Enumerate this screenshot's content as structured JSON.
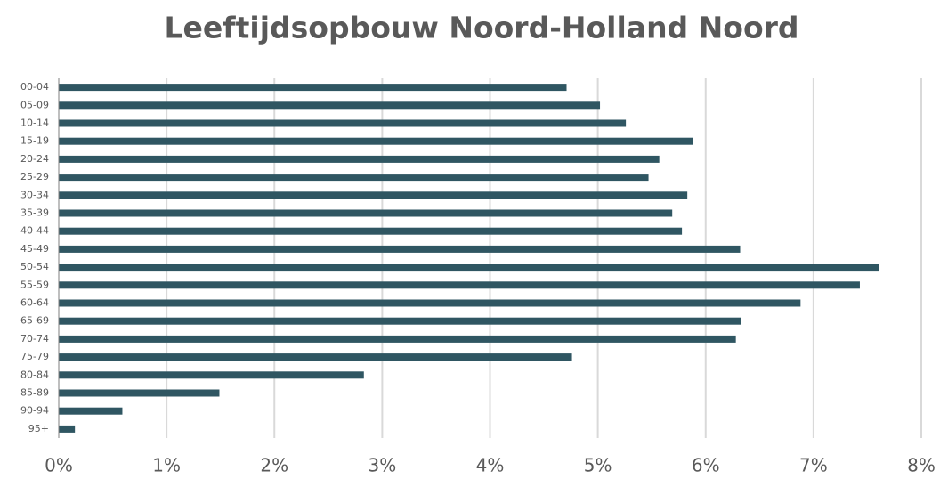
{
  "chart_data": {
    "type": "bar",
    "orientation": "horizontal",
    "title": "Leeftijdsopbouw Noord-Holland Noord",
    "categories": [
      "00-04",
      "05-09",
      "10-14",
      "15-19",
      "20-24",
      "25-29",
      "30-34",
      "35-39",
      "40-44",
      "45-49",
      "50-54",
      "55-59",
      "60-64",
      "65-69",
      "70-74",
      "75-79",
      "80-84",
      "85-89",
      "90-94",
      "95+"
    ],
    "values": [
      4.71,
      5.02,
      5.26,
      5.88,
      5.57,
      5.47,
      5.83,
      5.69,
      5.78,
      6.32,
      7.61,
      7.43,
      6.88,
      6.33,
      6.28,
      4.76,
      2.83,
      1.49,
      0.59,
      0.15
    ],
    "color": "#2f5662",
    "xlim": [
      0,
      8
    ],
    "xticks": [
      {
        "value": 0,
        "label": "0%"
      },
      {
        "value": 1,
        "label": "1%"
      },
      {
        "value": 2,
        "label": "2%"
      },
      {
        "value": 3,
        "label": "3%"
      },
      {
        "value": 4,
        "label": "4%"
      },
      {
        "value": 5,
        "label": "5%"
      },
      {
        "value": 6,
        "label": "6%"
      },
      {
        "value": 7,
        "label": "7%"
      },
      {
        "value": 8,
        "label": "8%"
      }
    ],
    "grid": true
  }
}
